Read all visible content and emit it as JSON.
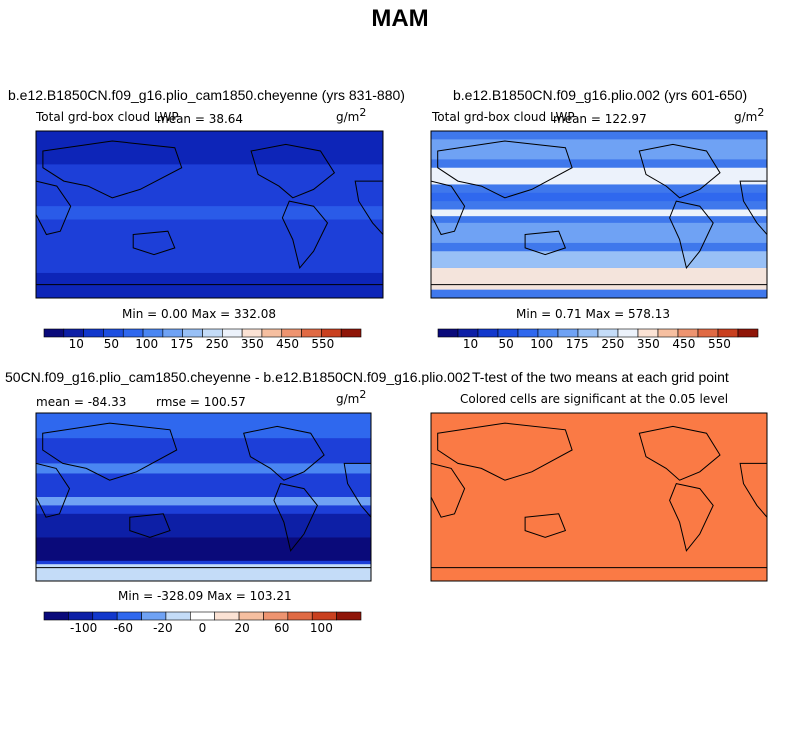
{
  "title": "MAM",
  "panels": [
    {
      "title": "b.e12.B1850CN.f09_g16.plio_cam1850.cheyenne (yrs 831-880)",
      "variable": "Total grd-box cloud LWP",
      "mean": "mean =  38.64",
      "units": {
        "base": "g/m",
        "exp": "2"
      },
      "stats": "Min =   0.00 Max = 332.08",
      "colorbar": [
        "10",
        "50",
        "100",
        "175",
        "250",
        "350",
        "450",
        "550"
      ]
    },
    {
      "title": "b.e12.B1850CN.f09_g16.plio.002 (yrs 601-650)",
      "variable": "Total grd-box cloud LWP",
      "mean": "mean = 122.97",
      "units": {
        "base": "g/m",
        "exp": "2"
      },
      "stats": "Min =   0.71 Max = 578.13",
      "colorbar": [
        "10",
        "50",
        "100",
        "175",
        "250",
        "350",
        "450",
        "550"
      ]
    },
    {
      "title": "50CN.f09_g16.plio_cam1850.cheyenne - b.e12.B1850CN.f09_g16.plio.002",
      "mean": "mean = -84.33",
      "rmse": "rmse = 100.57",
      "units": {
        "base": "g/m",
        "exp": "2"
      },
      "stats": "Min = -328.09 Max = 103.21",
      "colorbar": [
        "-100",
        "-60",
        "-20",
        "0",
        "20",
        "60",
        "100"
      ]
    },
    {
      "title": "T-test of the two means at each grid point",
      "subtitle": "Colored cells are significant at the 0.05 level"
    }
  ]
}
